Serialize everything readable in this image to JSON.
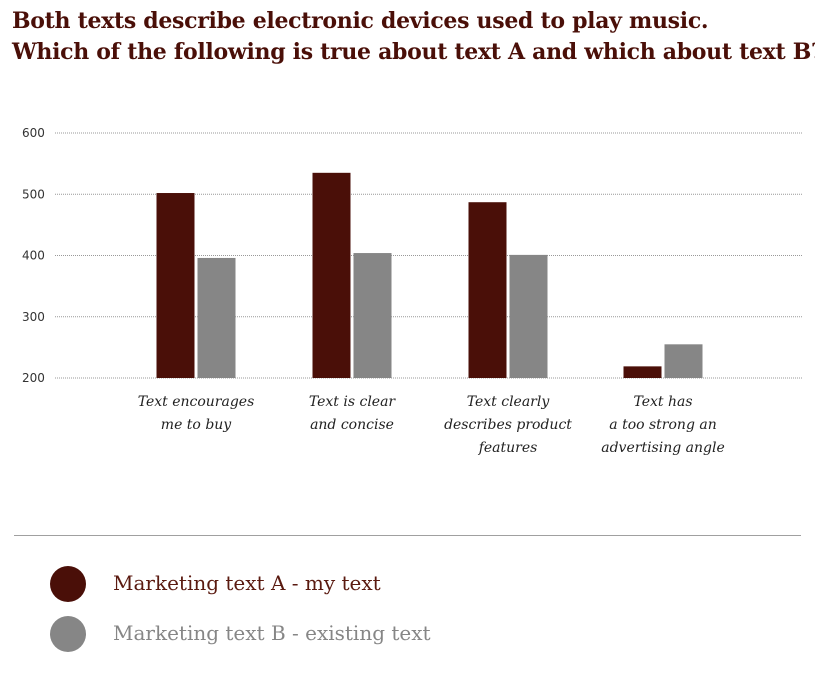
{
  "title": {
    "line1": "Both texts describe electronic devices used to play music.",
    "line2": "Which of the following is true about text A and which about text B?"
  },
  "colors": {
    "series_a": "#4a0f08",
    "series_b": "#868686",
    "grid": "#999999",
    "title": "#4a0f08"
  },
  "chart_data": {
    "type": "bar",
    "title": "",
    "xlabel": "",
    "ylabel": "",
    "ylim": [
      200,
      600
    ],
    "yticks": [
      600,
      500,
      400,
      300,
      200
    ],
    "grid": true,
    "legend_position": "bottom",
    "categories": [
      [
        "Text encourages",
        "me to buy"
      ],
      [
        "Text is clear",
        "and concise"
      ],
      [
        "Text clearly",
        "describes product",
        "features"
      ],
      [
        "Text has",
        "a too strong an",
        "advertising angle"
      ]
    ],
    "series": [
      {
        "name": "Marketing text A - my text",
        "values": [
          502,
          535,
          487,
          219
        ]
      },
      {
        "name": "Marketing text B - existing text",
        "values": [
          396,
          404,
          401,
          255
        ]
      }
    ]
  },
  "legend": [
    {
      "label": "Marketing text A - my text",
      "color": "#4a0f08",
      "text_color": "#5a1a10"
    },
    {
      "label": "Marketing text B - existing text",
      "color": "#868686",
      "text_color": "#868686"
    }
  ]
}
